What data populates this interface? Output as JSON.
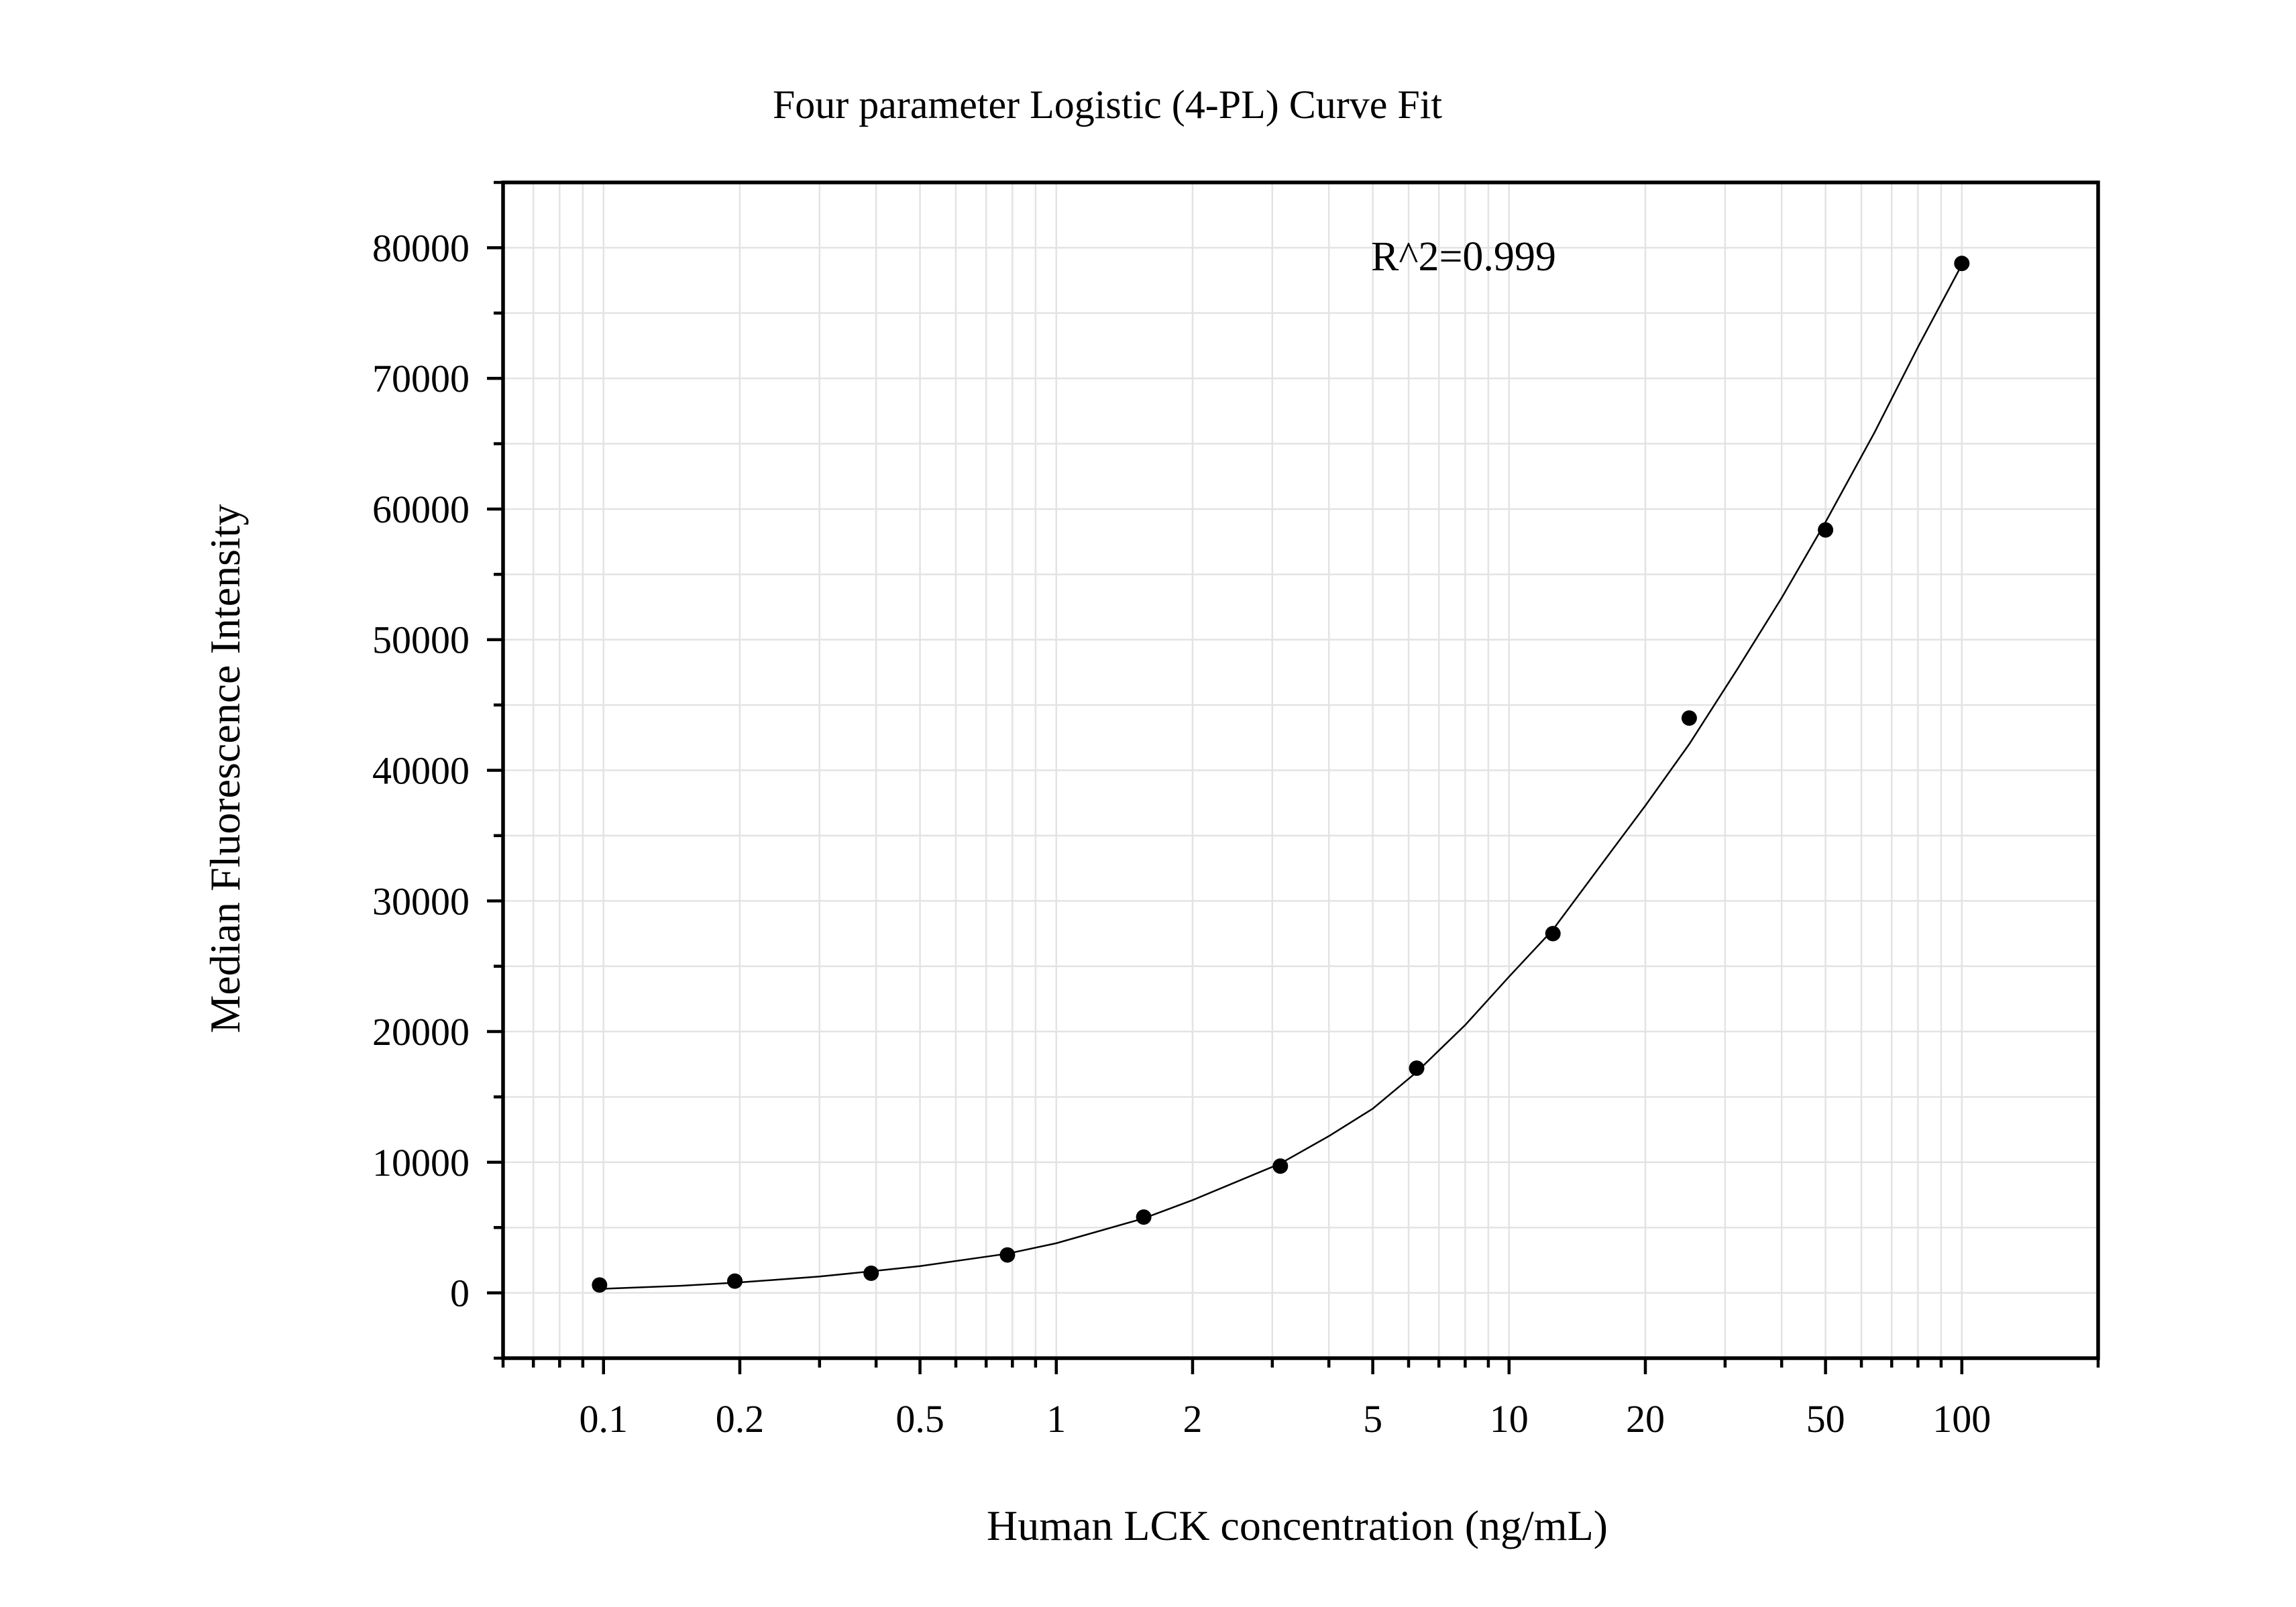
{
  "chart_data": {
    "type": "scatter",
    "title": "Four parameter Logistic (4-PL) Curve Fit",
    "xlabel": "Human LCK concentration (ng/mL)",
    "ylabel": "Median Fluorescence Intensity",
    "annotation": "R^2=0.999",
    "x_scale": "log",
    "xlim": [
      0.06,
      200
    ],
    "ylim": [
      -5000,
      85000
    ],
    "x_ticks": [
      0.1,
      0.2,
      0.5,
      1,
      2,
      5,
      10,
      20,
      50,
      100
    ],
    "x_tick_labels": [
      "0.1",
      "0.2",
      "0.5",
      "1",
      "2",
      "5",
      "10",
      "20",
      "50",
      "100"
    ],
    "y_ticks": [
      0,
      10000,
      20000,
      30000,
      40000,
      50000,
      60000,
      70000,
      80000
    ],
    "y_tick_labels": [
      "0",
      "10000",
      "20000",
      "30000",
      "40000",
      "50000",
      "60000",
      "70000",
      "80000"
    ],
    "grid": true,
    "series": [
      {
        "kind": "points",
        "x": [
          0.098,
          0.195,
          0.39,
          0.78,
          1.56,
          3.125,
          6.25,
          12.5,
          25,
          50,
          100
        ],
        "y": [
          600,
          900,
          1500,
          2900,
          5800,
          9700,
          17200,
          27500,
          44000,
          58400,
          78800
        ]
      },
      {
        "kind": "fit",
        "x": [
          0.098,
          0.15,
          0.2,
          0.3,
          0.39,
          0.5,
          0.78,
          1,
          1.56,
          2,
          3.125,
          4,
          5,
          6.25,
          8,
          10,
          12.5,
          16,
          20,
          25,
          32,
          40,
          50,
          64,
          80,
          100
        ],
        "y": [
          300,
          550,
          800,
          1250,
          1650,
          2050,
          3000,
          3800,
          5700,
          7100,
          9900,
          12000,
          14100,
          16900,
          20500,
          24200,
          27800,
          32800,
          37300,
          42000,
          47800,
          53200,
          59000,
          65800,
          72400,
          78700
        ]
      }
    ]
  }
}
